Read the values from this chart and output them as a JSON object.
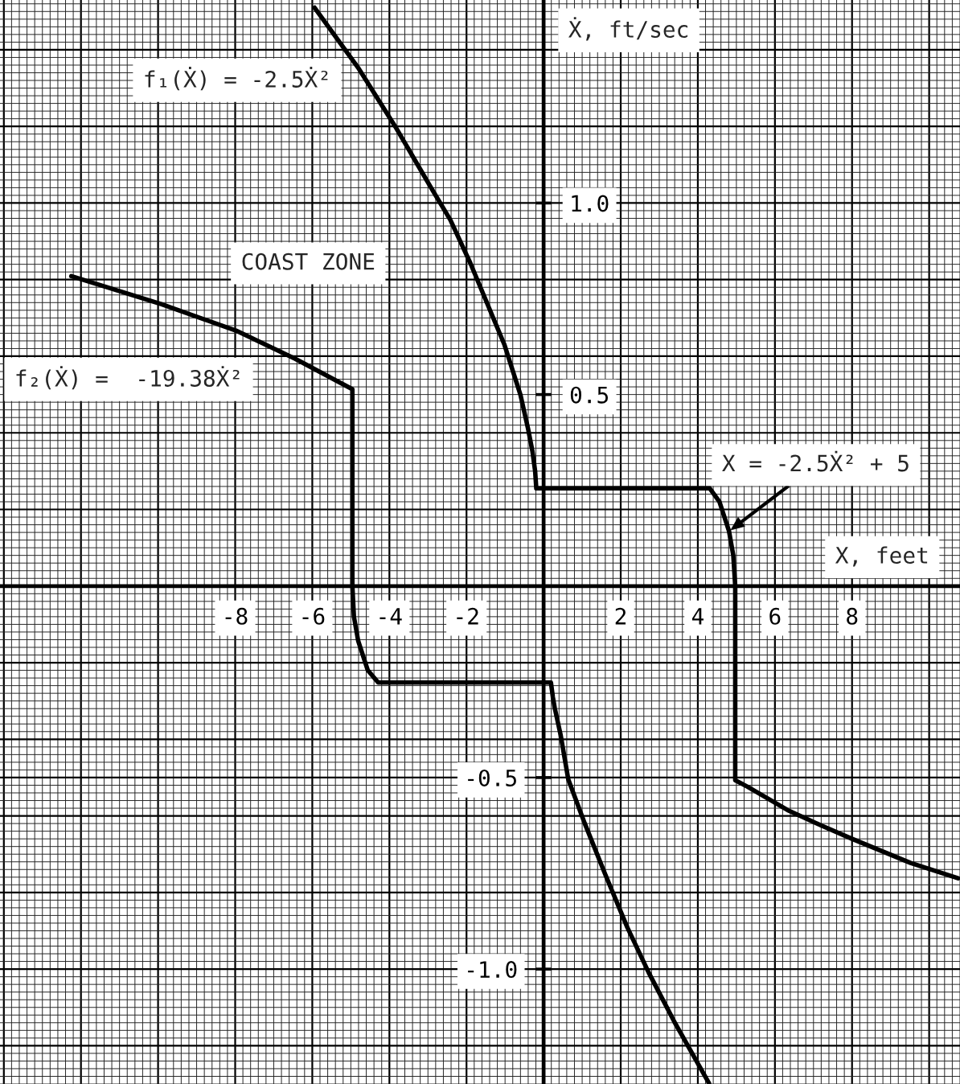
{
  "chart_data": {
    "type": "line",
    "xlabel": "X, feet",
    "y2label": "Ẋ, ft/sec",
    "xlim": [
      -14.1,
      10.8
    ],
    "ylim": [
      -1.3,
      1.53
    ],
    "y2lim": [
      -1.3,
      1.53
    ],
    "xticks": [
      {
        "value": -14,
        "label": null
      },
      {
        "value": -12,
        "label": null
      },
      {
        "value": -10,
        "label": null
      },
      -8,
      -6,
      -4,
      -2,
      2,
      4,
      6,
      8,
      {
        "value": 10,
        "label": null
      }
    ],
    "yticks": [
      {
        "value": -1.2,
        "label": null
      },
      {
        "value": -1.0,
        "label": "-1.0"
      },
      {
        "value": -0.8,
        "label": null
      },
      {
        "value": -0.6,
        "label": null
      },
      -0.5,
      {
        "value": -0.4,
        "label": null
      },
      {
        "value": -0.2,
        "label": null
      },
      {
        "value": 0.2,
        "label": null
      },
      {
        "value": 0.4,
        "label": null
      },
      {
        "value": 0.6,
        "label": null
      },
      {
        "value": 0.8,
        "label": null
      },
      {
        "value": 1.0,
        "label": null
      },
      {
        "value": 1.2,
        "label": null
      },
      {
        "value": 1.4,
        "label": null
      }
    ],
    "y2ticks": [
      0.5,
      {
        "value": 1.0,
        "label": "1.0"
      }
    ],
    "grid": true,
    "series": [
      {
        "color": "#000000",
        "x": [
          -5.94,
          -4.79,
          -3.85,
          -2.92,
          -2.42,
          -1.9,
          -1.02,
          -0.6,
          -0.4,
          -0.29,
          -0.22,
          -0.19,
          4.31,
          4.56,
          4.81,
          4.92,
          4.97,
          4.97,
          5.29,
          5.65,
          6.33,
          7.2,
          8.0,
          9.52,
          10.75
        ],
        "values": [
          1.51,
          1.35,
          1.2,
          1.04,
          0.956,
          0.843,
          0.631,
          0.499,
          0.409,
          0.352,
          0.3,
          0.255,
          0.255,
          0.22,
          0.143,
          0.08,
          0.0,
          -0.507,
          -0.524,
          -0.545,
          -0.585,
          -0.625,
          -0.66,
          -0.723,
          -0.763
        ]
      },
      {
        "color": "#000000",
        "x": [
          -12.25,
          -9.92,
          -7.98,
          -6.44,
          -4.96,
          -4.96,
          -4.92,
          -4.81,
          -4.56,
          -4.29,
          0.19,
          0.24,
          0.29,
          0.44,
          0.64,
          1.06,
          1.6,
          2.17,
          2.73,
          3.42,
          4.29
        ],
        "values": [
          0.809,
          0.736,
          0.667,
          0.593,
          0.514,
          0.0,
          -0.08,
          -0.143,
          -0.22,
          -0.252,
          -0.252,
          -0.29,
          -0.319,
          -0.388,
          -0.505,
          -0.618,
          -0.753,
          -0.891,
          -1.01,
          -1.143,
          -1.298
        ]
      }
    ],
    "annotations": [
      "f₁(Ẋ) = -2.5Ẋ²",
      "COAST ZONE",
      "f₂(Ẋ) =  -19.38Ẋ²",
      {
        "text": "X = -2.5Ẋ² + 5",
        "x": 4.81,
        "y": 0.143
      }
    ]
  }
}
